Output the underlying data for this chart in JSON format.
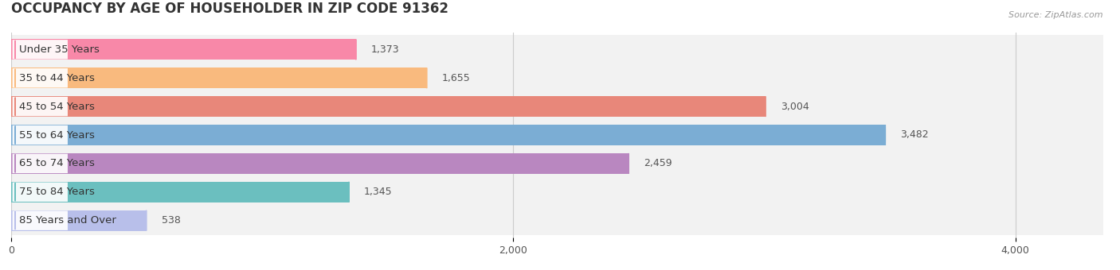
{
  "title": "OCCUPANCY BY AGE OF HOUSEHOLDER IN ZIP CODE 91362",
  "source": "Source: ZipAtlas.com",
  "categories": [
    "Under 35 Years",
    "35 to 44 Years",
    "45 to 54 Years",
    "55 to 64 Years",
    "65 to 74 Years",
    "75 to 84 Years",
    "85 Years and Over"
  ],
  "values": [
    1373,
    1655,
    3004,
    3482,
    2459,
    1345,
    538
  ],
  "bar_colors": [
    "#F888A8",
    "#F9BA7E",
    "#E8877A",
    "#7BADD4",
    "#B987C0",
    "#6BBFBF",
    "#B8BFEA"
  ],
  "xlim": [
    0,
    4350
  ],
  "xlim_display": [
    0,
    4000
  ],
  "xticks": [
    0,
    2000,
    4000
  ],
  "title_fontsize": 12,
  "label_fontsize": 9.5,
  "value_fontsize": 9,
  "background_color": "#FFFFFF",
  "bar_height": 0.72,
  "row_bg": "#F2F2F2",
  "row_gap_bg": "#FFFFFF",
  "value_inside_threshold": 600,
  "value_inside_color": "#FFFFFF",
  "value_outside_color": "#555555"
}
